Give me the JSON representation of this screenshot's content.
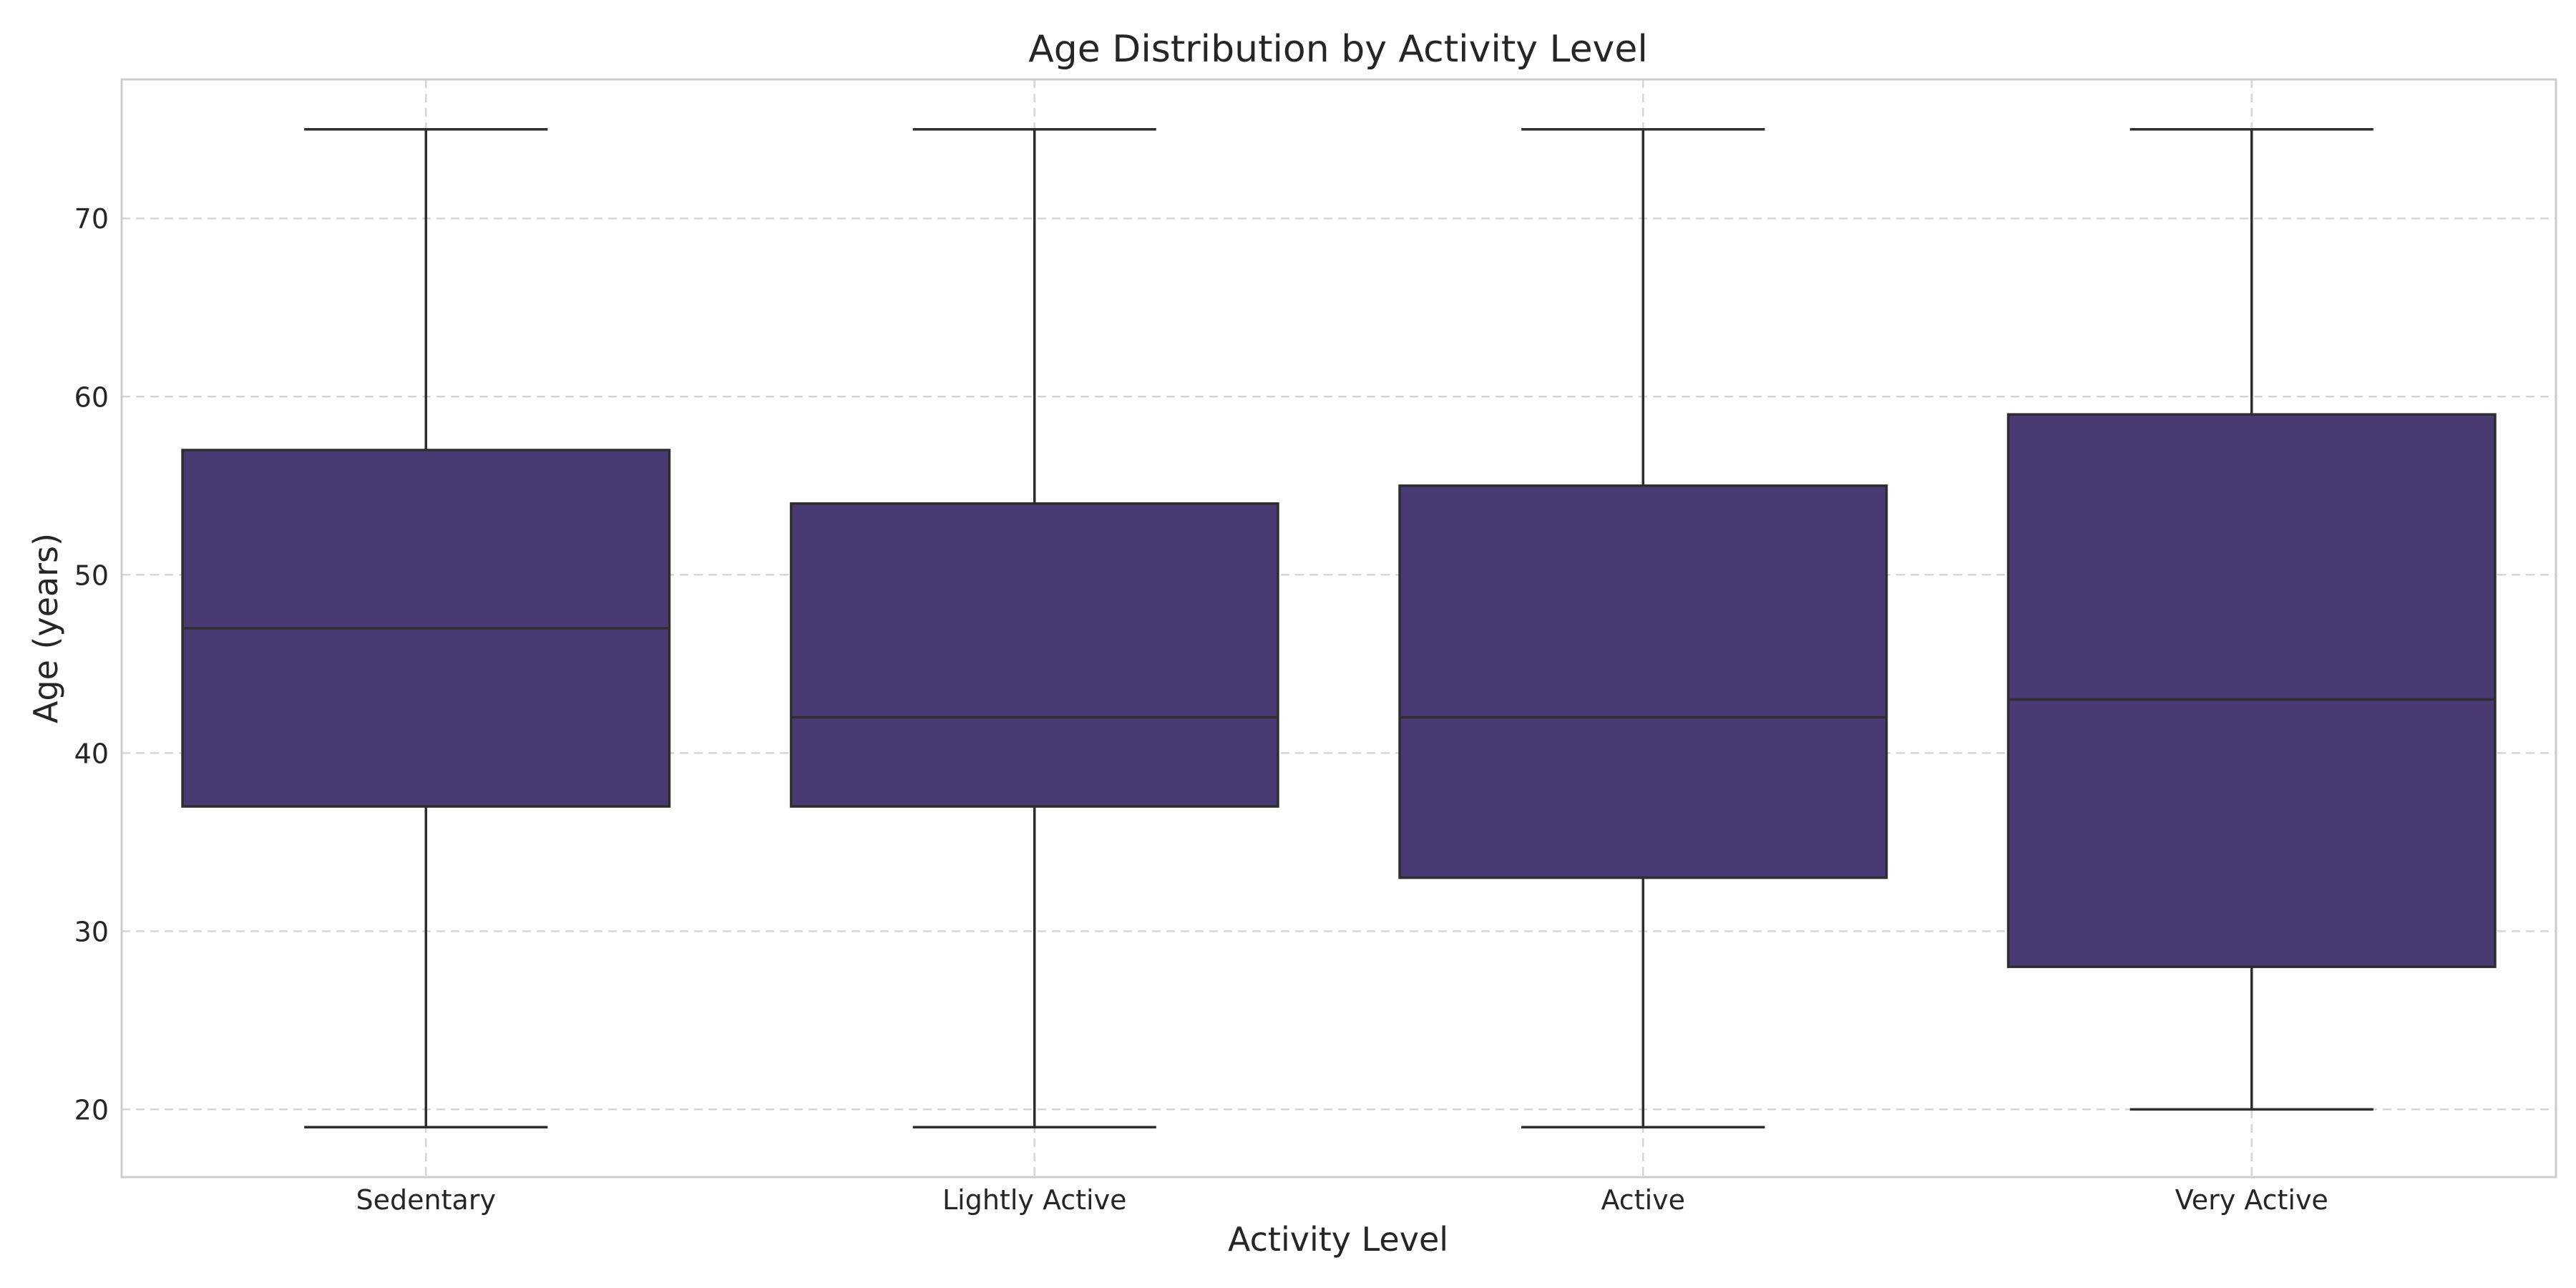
{
  "chart_data": {
    "type": "box",
    "title": "Age Distribution by Activity Level",
    "xlabel": "Activity Level",
    "ylabel": "Age (years)",
    "categories": [
      "Sedentary",
      "Lightly Active",
      "Active",
      "Very Active"
    ],
    "boxes": [
      {
        "category": "Sedentary",
        "whisker_low": 19,
        "q1": 37,
        "median": 47,
        "q3": 57,
        "whisker_high": 75
      },
      {
        "category": "Lightly Active",
        "whisker_low": 19,
        "q1": 37,
        "median": 42,
        "q3": 54,
        "whisker_high": 75
      },
      {
        "category": "Active",
        "whisker_low": 19,
        "q1": 33,
        "median": 42,
        "q3": 55,
        "whisker_high": 75
      },
      {
        "category": "Very Active",
        "whisker_low": 20,
        "q1": 28,
        "median": 43,
        "q3": 59,
        "whisker_high": 75
      }
    ],
    "yticks": [
      20,
      30,
      40,
      50,
      60,
      70
    ],
    "ylim": [
      16.2,
      77.8
    ],
    "grid": true,
    "colors": {
      "box_fill": "#4a3a73",
      "box_edge": "#2e2e2e",
      "grid": "#d6d6d6",
      "frame": "#cccccc"
    }
  }
}
